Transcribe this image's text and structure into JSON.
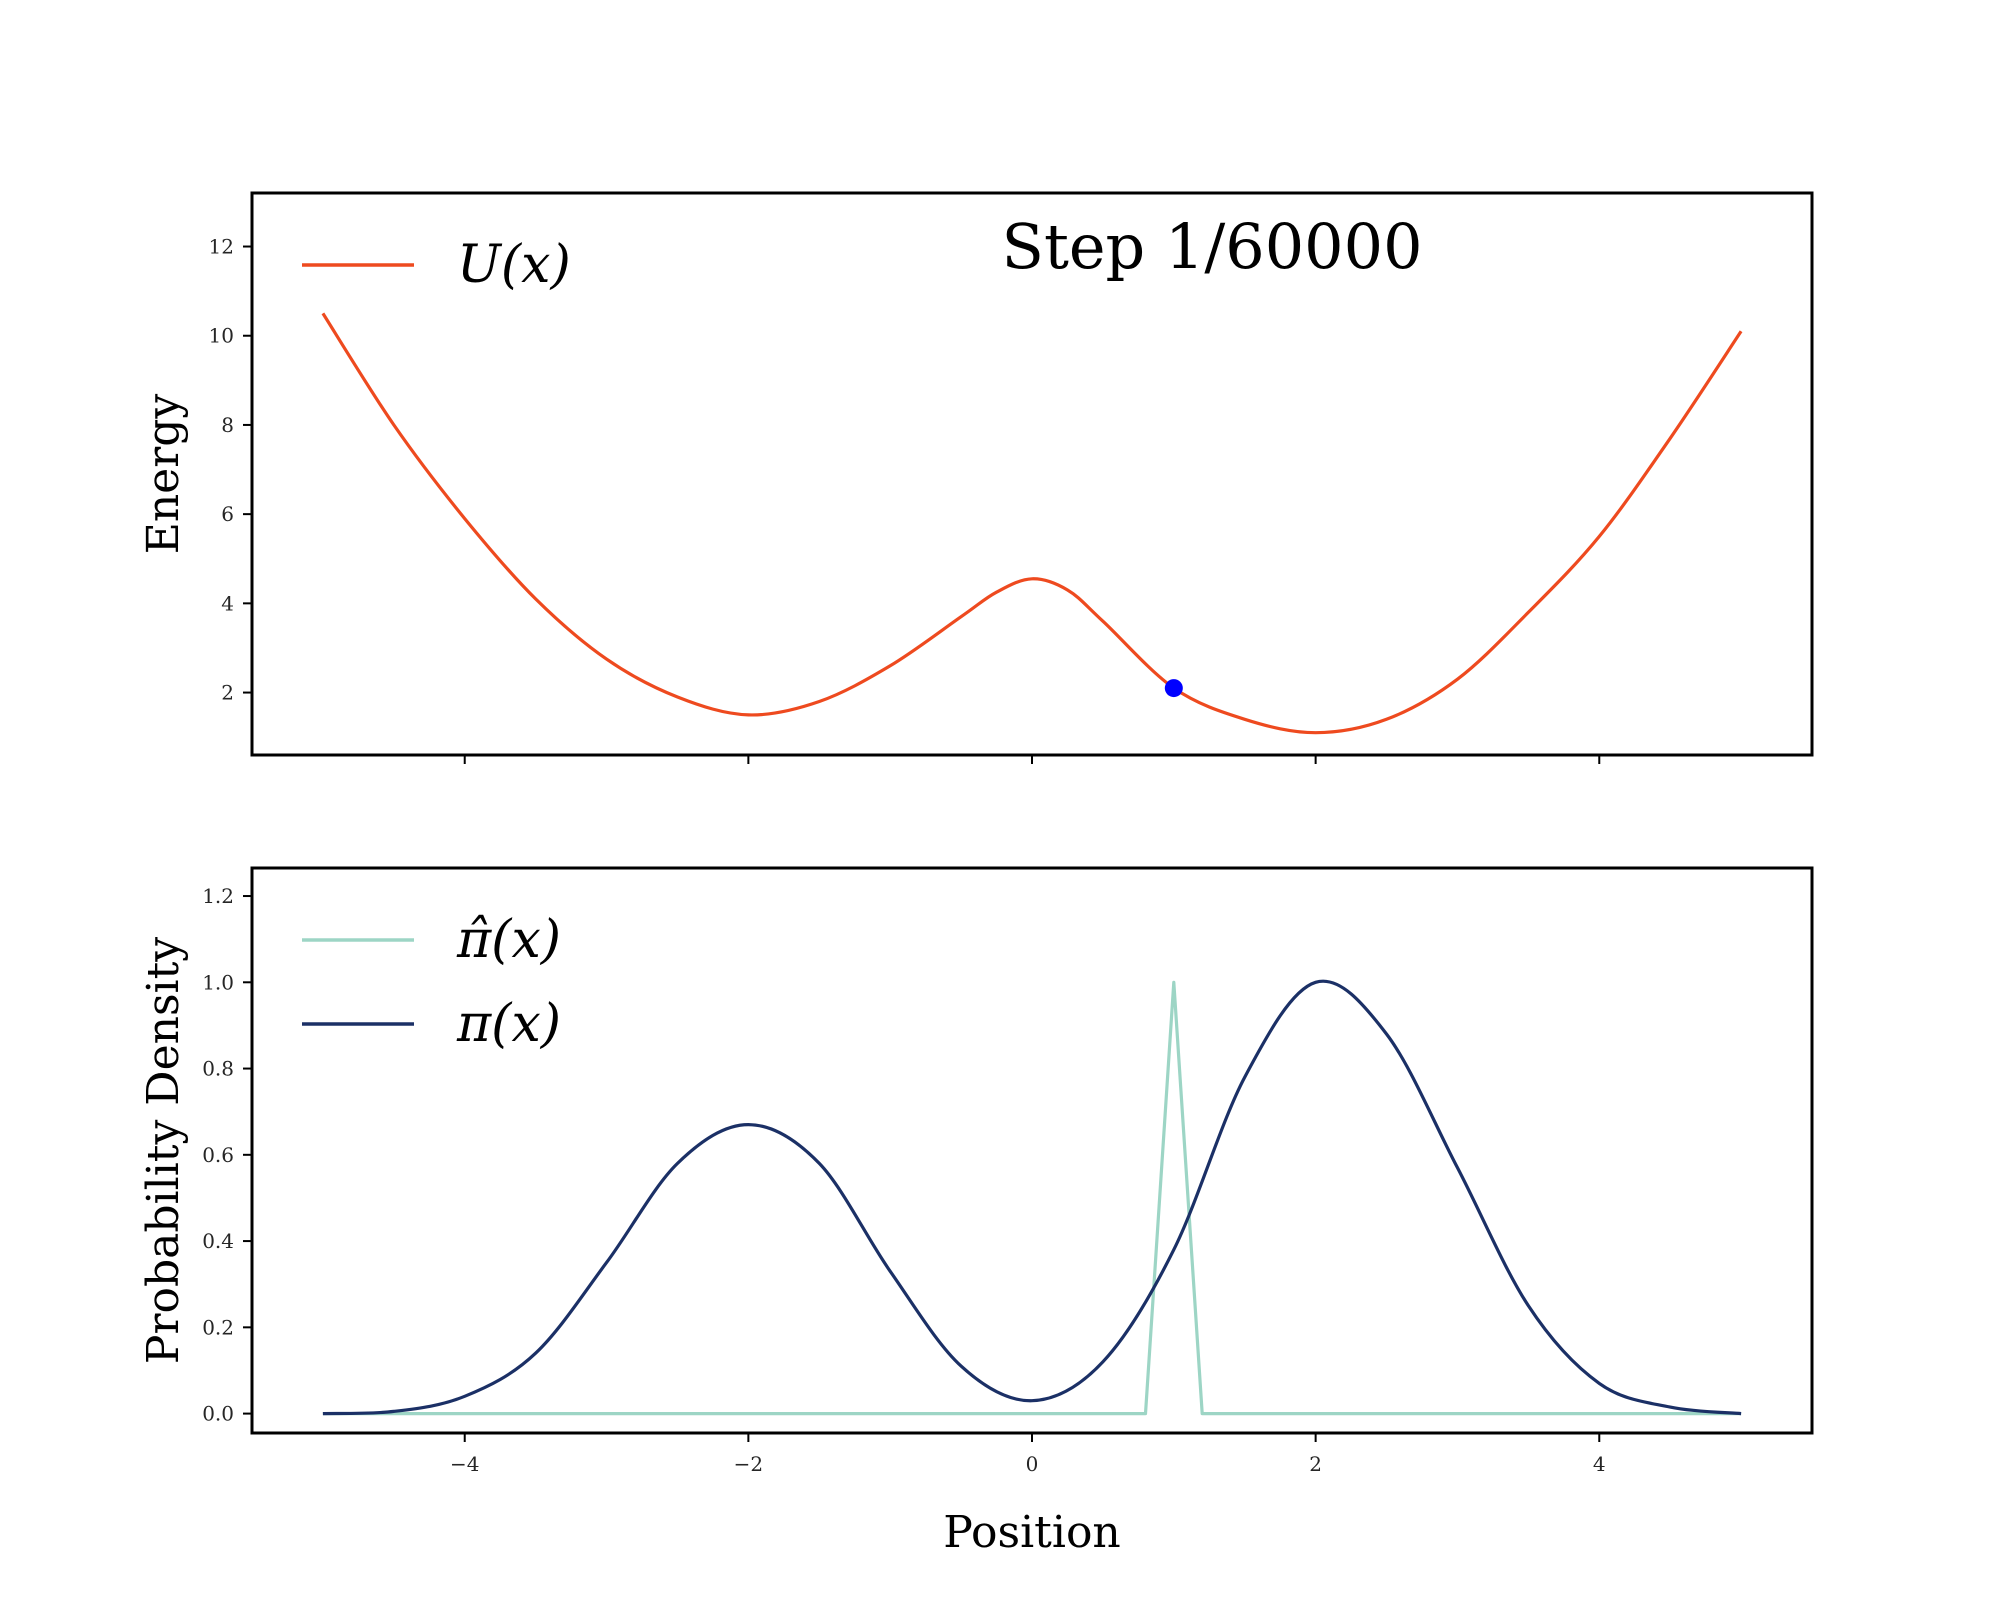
{
  "chart_data": [
    {
      "type": "line",
      "ylabel": "Energy",
      "xlim": [
        -5.5,
        5.5
      ],
      "ylim": [
        0.6,
        13.2
      ],
      "xticks": [
        -4,
        -2,
        0,
        2,
        4
      ],
      "xtick_labels": [
        "",
        "",
        "",
        "",
        ""
      ],
      "yticks": [
        2,
        4,
        6,
        8,
        10,
        12
      ],
      "ytick_labels": [
        "2",
        "4",
        "6",
        "8",
        "10",
        "12"
      ],
      "legend_position": "upper-left",
      "annotation": "Step 1/60000",
      "series": [
        {
          "name": "U(x)",
          "color": "#ee4a1f",
          "x": [
            -5.0,
            -4.5,
            -4.0,
            -3.5,
            -3.0,
            -2.5,
            -2.0,
            -1.5,
            -1.0,
            -0.5,
            -0.25,
            0.0,
            0.25,
            0.5,
            1.0,
            1.5,
            2.0,
            2.5,
            3.0,
            3.5,
            4.0,
            4.5,
            5.0
          ],
          "y": [
            10.5,
            8.0,
            5.9,
            4.1,
            2.75,
            1.9,
            1.5,
            1.8,
            2.6,
            3.7,
            4.25,
            4.55,
            4.3,
            3.6,
            2.1,
            1.4,
            1.1,
            1.4,
            2.3,
            3.8,
            5.5,
            7.7,
            10.1
          ]
        }
      ],
      "marker": {
        "x": 1.0,
        "y": 2.1,
        "color": "#0000ff"
      }
    },
    {
      "type": "line",
      "xlabel": "Position",
      "ylabel": "Probability Density",
      "xlim": [
        -5.5,
        5.5
      ],
      "ylim": [
        -0.045,
        1.265
      ],
      "xticks": [
        -4,
        -2,
        0,
        2,
        4
      ],
      "xtick_labels": [
        "−4",
        "−2",
        "0",
        "2",
        "4"
      ],
      "yticks": [
        0.0,
        0.2,
        0.4,
        0.6,
        0.8,
        1.0,
        1.2
      ],
      "ytick_labels": [
        "0.0",
        "0.2",
        "0.4",
        "0.6",
        "0.8",
        "1.0",
        "1.2"
      ],
      "legend_position": "upper-left",
      "series": [
        {
          "name": "π̂(x)",
          "color": "#9dd5c5",
          "x": [
            -5.0,
            0.8,
            1.0,
            1.2,
            5.0
          ],
          "y": [
            0.0,
            0.0,
            1.0,
            0.0,
            0.0
          ]
        },
        {
          "name": "π(x)",
          "color": "#1b3066",
          "x": [
            -5.0,
            -4.5,
            -4.0,
            -3.5,
            -3.0,
            -2.5,
            -2.0,
            -1.5,
            -1.0,
            -0.5,
            0.0,
            0.5,
            1.0,
            1.5,
            2.0,
            2.5,
            3.0,
            3.5,
            4.0,
            4.5,
            5.0
          ],
          "y": [
            0.0,
            0.005,
            0.04,
            0.14,
            0.35,
            0.58,
            0.67,
            0.58,
            0.33,
            0.11,
            0.03,
            0.12,
            0.38,
            0.78,
            1.0,
            0.88,
            0.57,
            0.25,
            0.07,
            0.015,
            0.0
          ]
        }
      ]
    }
  ]
}
